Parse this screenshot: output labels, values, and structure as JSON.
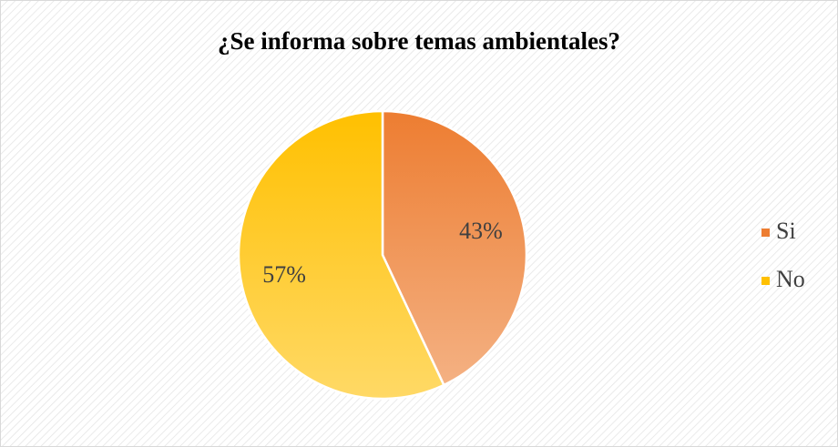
{
  "chart_data": {
    "type": "pie",
    "title": "¿Se informa sobre temas ambientales?",
    "categories": [
      "Si",
      "No"
    ],
    "values": [
      43,
      57
    ],
    "value_labels": [
      "43%",
      "57%"
    ],
    "colors": [
      "#ED7D31",
      "#FFC000"
    ],
    "legend": "right"
  }
}
